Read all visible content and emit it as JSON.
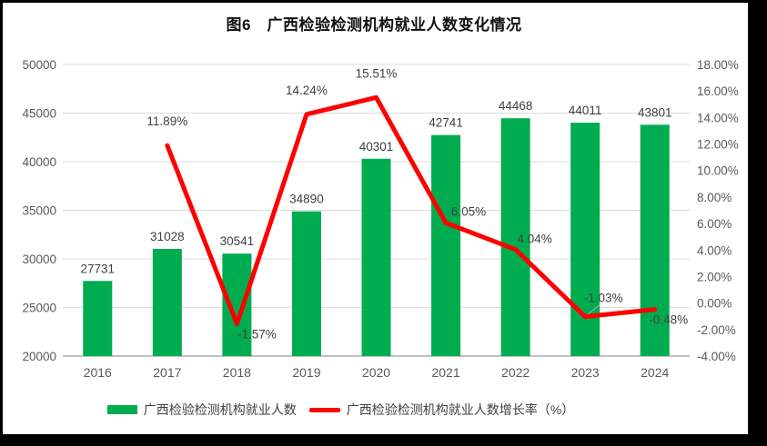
{
  "figure_title": "图6　广西检验检测机构就业人数变化情况",
  "chart_data": {
    "type": "bar+line",
    "title": "图6　广西检验检测机构就业人数变化情况",
    "categories": [
      "2016",
      "2017",
      "2018",
      "2019",
      "2020",
      "2021",
      "2022",
      "2023",
      "2024"
    ],
    "series": [
      {
        "name": "广西检验检测机构就业人数",
        "type": "bar",
        "axis": "left",
        "color": "#00AC50",
        "values": [
          27731,
          31028,
          30541,
          34890,
          40301,
          42741,
          44468,
          44011,
          43801
        ],
        "labels": [
          "27731",
          "31028",
          "30541",
          "34890",
          "40301",
          "42741",
          "44468",
          "44011",
          "43801"
        ]
      },
      {
        "name": "广西检验检测机构就业人数增长率（%）",
        "type": "line",
        "axis": "right",
        "color": "#FF0000",
        "values": [
          null,
          11.89,
          -1.57,
          14.24,
          15.51,
          6.05,
          4.04,
          -1.03,
          -0.48
        ],
        "labels": [
          "",
          "11.89%",
          "-1.57%",
          "14.24%",
          "15.51%",
          "6.05%",
          "4.04%",
          "-1.03%",
          "-0.48%"
        ]
      }
    ],
    "left_axis": {
      "min": 20000,
      "max": 50000,
      "step": 5000,
      "tick_labels": [
        "50000",
        "45000",
        "40000",
        "35000",
        "30000",
        "25000",
        "20000"
      ]
    },
    "right_axis": {
      "min": -4,
      "max": 18,
      "step": 2,
      "tick_labels": [
        "18.00%",
        "16.00%",
        "14.00%",
        "12.00%",
        "10.00%",
        "8.00%",
        "6.00%",
        "4.00%",
        "2.00%",
        "0.00%",
        "-2.00%",
        "-4.00%"
      ]
    },
    "grid": true,
    "legend_position": "bottom",
    "colors": {
      "bar": "#00AC50",
      "line": "#FF0000",
      "axis_text": "#595959",
      "label_text": "#404040",
      "gridline": "#DCDCDC",
      "axis_line": "#C0C0C0",
      "leader_line": "#A6A6A6"
    }
  }
}
